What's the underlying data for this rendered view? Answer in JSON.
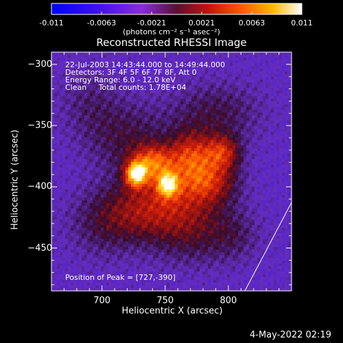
{
  "chart_data": {
    "type": "heatmap",
    "title": "Reconstructed RHESSI Image",
    "xlabel": "Heliocentric X (arcsec)",
    "ylabel": "Heliocentric Y (arcsec)",
    "xlim": [
      660,
      850
    ],
    "ylim": [
      -485,
      -290
    ],
    "x_ticks": [
      700,
      750,
      800
    ],
    "y_ticks": [
      -300,
      -350,
      -400,
      -450
    ],
    "colorbar": {
      "ticks": [
        "-0.011",
        "-0.0063",
        "-0.0021",
        "0.0021",
        "0.0063",
        "0.011"
      ],
      "units": "(photons cm⁻² s⁻¹ asec⁻²)",
      "range": [
        -0.011,
        0.011
      ]
    },
    "annotations": {
      "time_range": "22-Jul-2003 14:43:44.000 to 14:49:44.000",
      "detectors": "Detectors: 3F 4F 5F 6F 7F 8F, Att 0",
      "energy": "Energy Range: 6.0 - 12.0 keV",
      "clean": "Clean     Total counts: 1.78E+04",
      "peak": "Position of Peak = [727,-390]"
    },
    "peak_position": [
      727,
      -390
    ],
    "sources": [
      {
        "x": 727,
        "y": -390,
        "intensity": 0.011,
        "sx": 6,
        "sy": 7
      },
      {
        "x": 752,
        "y": -398,
        "intensity": 0.0095,
        "sx": 6,
        "sy": 7
      },
      {
        "x": 740,
        "y": -380,
        "intensity": 0.0075,
        "sx": 12,
        "sy": 10
      },
      {
        "x": 770,
        "y": -375,
        "intensity": 0.0065,
        "sx": 12,
        "sy": 14
      },
      {
        "x": 795,
        "y": -372,
        "intensity": 0.0065,
        "sx": 10,
        "sy": 10
      },
      {
        "x": 785,
        "y": -395,
        "intensity": 0.0055,
        "sx": 15,
        "sy": 12
      },
      {
        "x": 760,
        "y": -410,
        "intensity": 0.0045,
        "sx": 25,
        "sy": 18
      },
      {
        "x": 730,
        "y": -420,
        "intensity": 0.0035,
        "sx": 22,
        "sy": 18
      },
      {
        "x": 720,
        "y": -360,
        "intensity": 0.003,
        "sx": 25,
        "sy": 20
      },
      {
        "x": 790,
        "y": -340,
        "intensity": 0.003,
        "sx": 25,
        "sy": 18
      },
      {
        "x": 770,
        "y": -440,
        "intensity": 0.0028,
        "sx": 22,
        "sy": 18
      },
      {
        "x": 700,
        "y": -430,
        "intensity": 0.0025,
        "sx": 20,
        "sy": 20
      },
      {
        "x": 690,
        "y": -330,
        "intensity": 0.0018,
        "sx": 18,
        "sy": 18
      },
      {
        "x": 805,
        "y": -440,
        "intensity": 0.002,
        "sx": 15,
        "sy": 15
      }
    ]
  },
  "timestamp": "4-May-2022 02:19"
}
